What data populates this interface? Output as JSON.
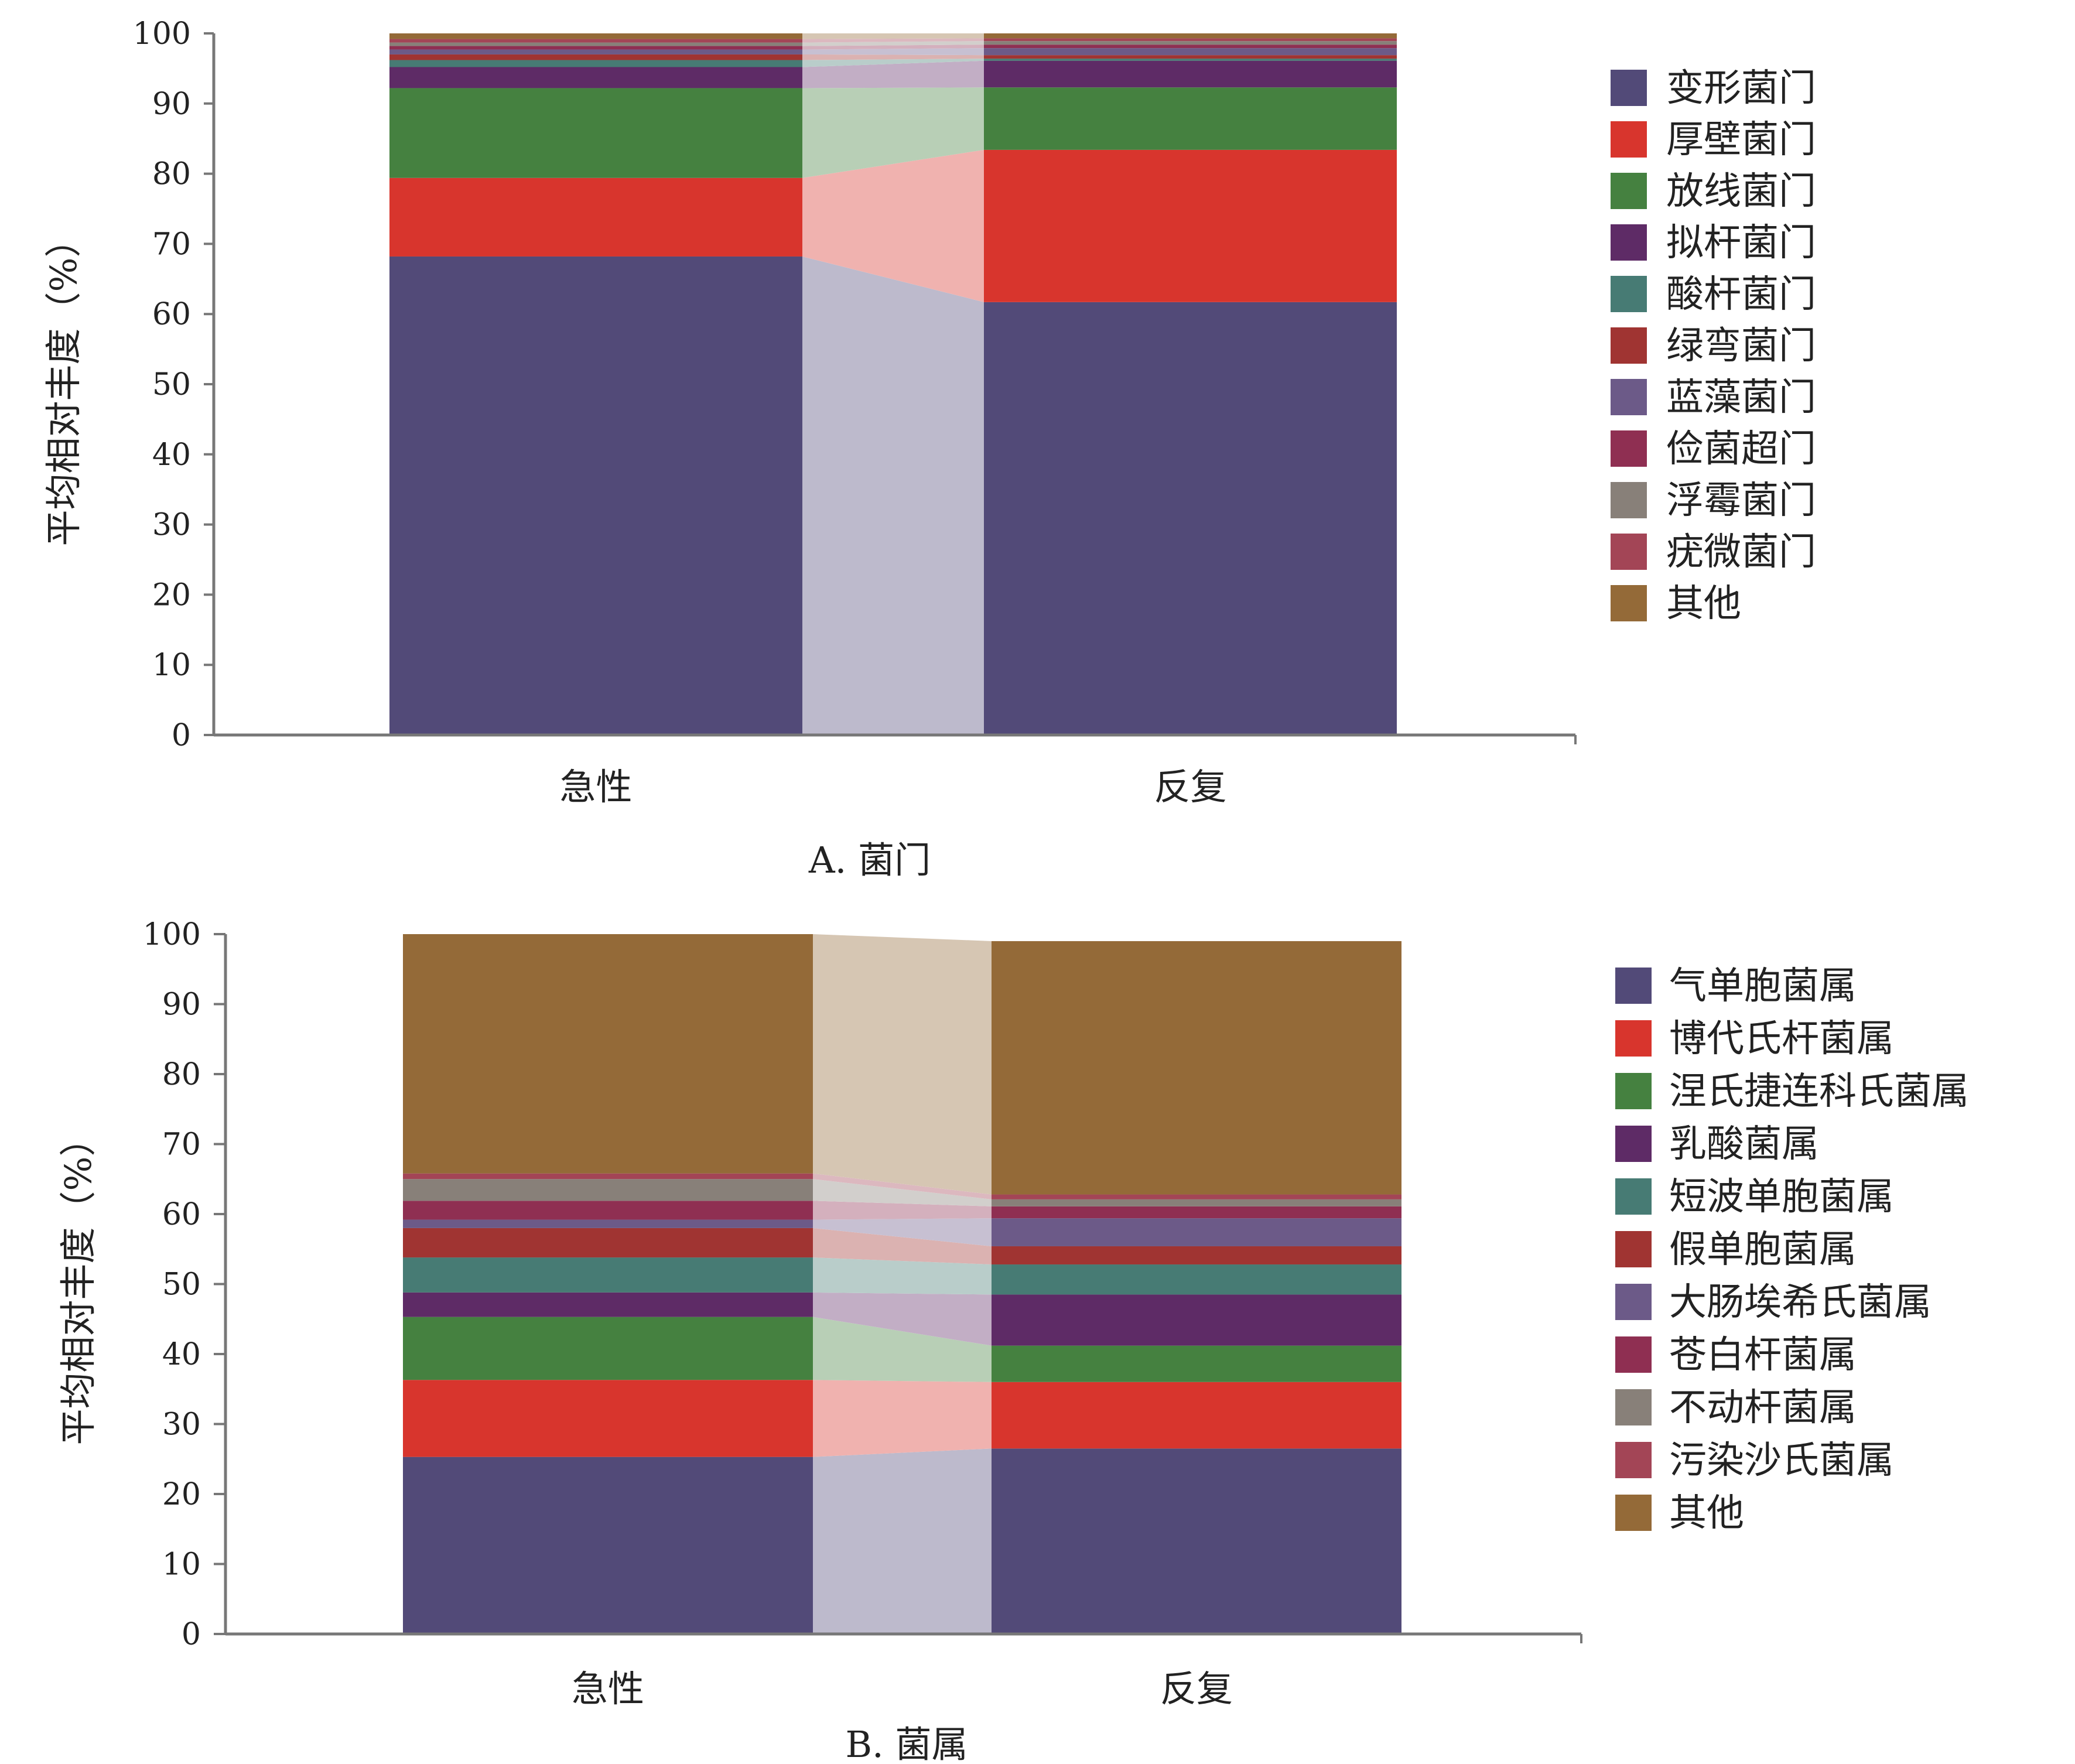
{
  "chart_data": [
    {
      "type": "bar",
      "stacked": true,
      "caption": "A. 菌门",
      "ylabel": "平均相对丰度（%）",
      "ylim": [
        0,
        100
      ],
      "yticks": [
        "0",
        "10",
        "20",
        "30",
        "40",
        "50",
        "60",
        "70",
        "80",
        "90",
        "100"
      ],
      "categories": [
        "急性",
        "反复"
      ],
      "legend_position": "right",
      "series": [
        {
          "name": "变形菌门",
          "color": "#524a78",
          "values": [
            68.2,
            61.7
          ]
        },
        {
          "name": "厚壁菌门",
          "color": "#d8352d",
          "values": [
            11.2,
            21.7
          ]
        },
        {
          "name": "放线菌门",
          "color": "#458140",
          "values": [
            12.8,
            8.9
          ]
        },
        {
          "name": "拟杆菌门",
          "color": "#5e2b66",
          "values": [
            3.0,
            3.8
          ]
        },
        {
          "name": "酸杆菌门",
          "color": "#477b74",
          "values": [
            1.0,
            0.3
          ]
        },
        {
          "name": "绿弯菌门",
          "color": "#a03432",
          "values": [
            0.8,
            0.5
          ]
        },
        {
          "name": "蓝藻菌门",
          "color": "#6c5a88",
          "values": [
            0.7,
            1.0
          ]
        },
        {
          "name": "俭菌超门",
          "color": "#8f2f52",
          "values": [
            0.5,
            0.5
          ]
        },
        {
          "name": "浮霉菌门",
          "color": "#888079",
          "values": [
            0.5,
            0.5
          ]
        },
        {
          "name": "疣微菌门",
          "color": "#a34556",
          "values": [
            0.5,
            0.4
          ]
        },
        {
          "name": "其他",
          "color": "#946a38",
          "values": [
            0.8,
            0.7
          ]
        }
      ]
    },
    {
      "type": "bar",
      "stacked": true,
      "caption": "B. 菌属",
      "ylabel": "平均相对丰度（%）",
      "ylim": [
        0,
        100
      ],
      "yticks": [
        "0",
        "10",
        "20",
        "30",
        "40",
        "50",
        "60",
        "70",
        "80",
        "90",
        "100"
      ],
      "categories": [
        "急性",
        "反复"
      ],
      "legend_position": "right",
      "series": [
        {
          "name": "气单胞菌属",
          "color": "#524a78",
          "values": [
            25.3,
            26.5
          ]
        },
        {
          "name": "博代氏杆菌属",
          "color": "#d8352d",
          "values": [
            11.0,
            9.5
          ]
        },
        {
          "name": "涅氏捷连科氏菌属",
          "color": "#458140",
          "values": [
            9.0,
            5.2
          ]
        },
        {
          "name": "乳酸菌属",
          "color": "#5e2b66",
          "values": [
            3.5,
            7.3
          ]
        },
        {
          "name": "短波单胞菌属",
          "color": "#477b74",
          "values": [
            5.0,
            4.3
          ]
        },
        {
          "name": "假单胞菌属",
          "color": "#a03432",
          "values": [
            4.2,
            2.6
          ]
        },
        {
          "name": "大肠埃希氏菌属",
          "color": "#6c5a88",
          "values": [
            1.2,
            4.0
          ]
        },
        {
          "name": "苍白杆菌属",
          "color": "#8f2f52",
          "values": [
            2.7,
            1.7
          ]
        },
        {
          "name": "不动杆菌属",
          "color": "#888079",
          "values": [
            3.1,
            1.0
          ]
        },
        {
          "name": "污染沙氏菌属",
          "color": "#a34556",
          "values": [
            0.8,
            0.7
          ]
        },
        {
          "name": "其他",
          "color": "#946a38",
          "values": [
            34.2,
            36.2
          ]
        }
      ]
    }
  ]
}
